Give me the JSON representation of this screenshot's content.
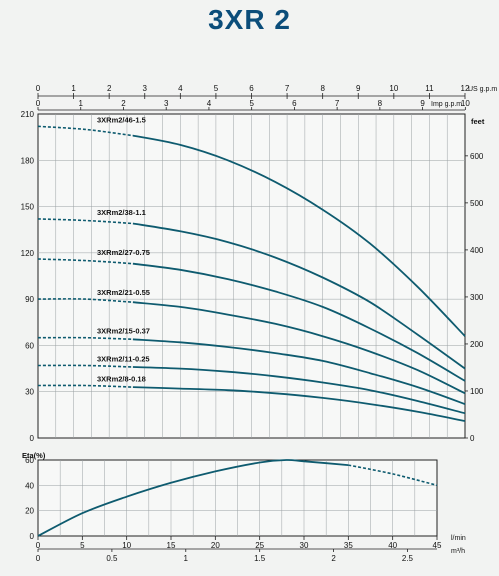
{
  "title": "3XR 2",
  "chart_data": [
    {
      "type": "line",
      "name": "head-curves",
      "x_lpm": [
        0,
        5,
        10,
        15,
        20,
        25,
        30,
        35,
        40,
        45
      ],
      "xlim_lpm": [
        0,
        45
      ],
      "ylabel_left": "",
      "ylabel_right": "feet",
      "ylim": [
        0,
        210
      ],
      "y_ticks": [
        0,
        30,
        60,
        90,
        120,
        150,
        180,
        210
      ],
      "feet_ticks": [
        0,
        100,
        200,
        300,
        400,
        500,
        600
      ],
      "top_axes": [
        {
          "unit": "US g.p.m",
          "ticks": [
            0,
            1,
            2,
            3,
            4,
            5,
            6,
            7,
            8,
            9,
            10,
            11,
            12
          ]
        },
        {
          "unit": "Imp g.p.m",
          "ticks": [
            0,
            1,
            2,
            3,
            4,
            5,
            6,
            7,
            8,
            9,
            10
          ]
        }
      ],
      "series": [
        {
          "name": "3XRm2/46-1.5",
          "shutoff_dashed_to": 10,
          "values": [
            202,
            200,
            196,
            190,
            180,
            166,
            148,
            126,
            98,
            66
          ]
        },
        {
          "name": "3XRm2/38-1.1",
          "shutoff_dashed_to": 10,
          "values": [
            142,
            141,
            139,
            134,
            127,
            117,
            104,
            88,
            67,
            45
          ]
        },
        {
          "name": "3XRm2/27-0.75",
          "shutoff_dashed_to": 10,
          "values": [
            116,
            115,
            113,
            109,
            103,
            95,
            85,
            71,
            55,
            37
          ]
        },
        {
          "name": "3XRm2/21-0.55",
          "shutoff_dashed_to": 10,
          "values": [
            90,
            90,
            88,
            85,
            80,
            74,
            66,
            56,
            44,
            29
          ]
        },
        {
          "name": "3XRm2/15-0.37",
          "shutoff_dashed_to": 10,
          "values": [
            65,
            65,
            64,
            62,
            59,
            55,
            50,
            42,
            33,
            22
          ]
        },
        {
          "name": "3XRm2/11-0.25",
          "shutoff_dashed_to": 10,
          "values": [
            47,
            47,
            46,
            45,
            43,
            40,
            36,
            31,
            24,
            16
          ]
        },
        {
          "name": "3XRm2/8-0.18",
          "shutoff_dashed_to": 10,
          "values": [
            34,
            34,
            33,
            32,
            31,
            29,
            26,
            22,
            17,
            11
          ]
        }
      ]
    },
    {
      "type": "line",
      "name": "efficiency",
      "ylabel": "Eta(%)",
      "ylim": [
        0,
        60
      ],
      "y_ticks": [
        0,
        20,
        40,
        60
      ],
      "x_ticks_lpm": [
        0,
        5,
        10,
        15,
        20,
        25,
        30,
        35,
        40,
        45
      ],
      "x_unit_lpm": "l/min",
      "x_ticks_m3h": [
        "0",
        "0.5",
        "1",
        "1.5",
        "2",
        "2.5"
      ],
      "x_unit_m3h": "m³/h",
      "series": [
        {
          "x": [
            0,
            5,
            10,
            15,
            20,
            25,
            28,
            30,
            35,
            40,
            45
          ],
          "values": [
            0,
            18,
            31,
            42,
            51,
            58,
            60,
            59,
            56,
            49,
            40
          ],
          "dashed_from": 35
        }
      ]
    }
  ],
  "colors": {
    "curve": "#0e5b6f",
    "grid": "#9aa0a3",
    "title": "#0b4d7a"
  }
}
